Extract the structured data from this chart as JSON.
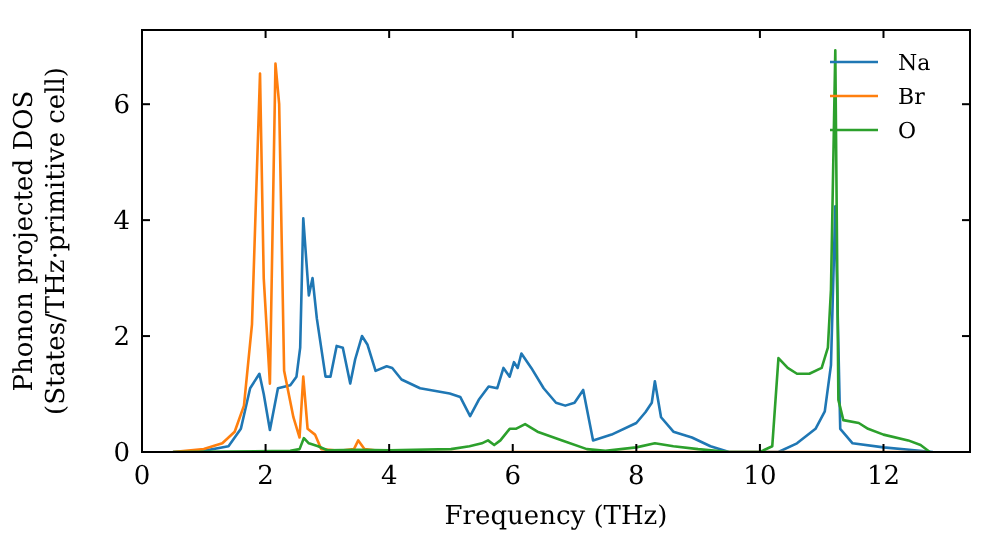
{
  "chart_data": {
    "type": "line",
    "xlabel": "Frequency (THz)",
    "ylabel": "Phonon projected DOS\n(States/THz·primitive cell)",
    "xlim": [
      0,
      13.4
    ],
    "ylim": [
      0,
      7.28
    ],
    "xticks": [
      0,
      2,
      4,
      6,
      8,
      10,
      12
    ],
    "yticks": [
      0,
      2,
      4,
      6
    ],
    "grid": false,
    "legend": "top right",
    "marker": "none",
    "line_style": "solid",
    "series": [
      {
        "name": "Na",
        "color": "#1f77b4",
        "x": [
          0.5,
          1.0,
          1.4,
          1.6,
          1.75,
          1.9,
          1.97,
          2.07,
          2.2,
          2.4,
          2.5,
          2.56,
          2.61,
          2.7,
          2.76,
          2.83,
          2.97,
          3.05,
          3.15,
          3.25,
          3.37,
          3.45,
          3.56,
          3.65,
          3.78,
          3.96,
          4.05,
          4.2,
          4.5,
          4.98,
          5.15,
          5.31,
          5.45,
          5.61,
          5.75,
          5.85,
          5.95,
          6.02,
          6.08,
          6.14,
          6.3,
          6.5,
          6.7,
          6.85,
          7.0,
          7.14,
          7.3,
          7.6,
          8.0,
          8.15,
          8.25,
          8.3,
          8.4,
          8.6,
          8.9,
          9.2,
          9.5,
          10.3,
          10.6,
          10.9,
          11.05,
          11.15,
          11.22,
          11.3,
          11.5,
          12.0,
          12.5,
          12.8
        ],
        "values": [
          0,
          0.02,
          0.1,
          0.4,
          1.1,
          1.35,
          1.0,
          0.38,
          1.1,
          1.15,
          1.3,
          1.8,
          4.03,
          2.7,
          3.0,
          2.3,
          1.3,
          1.3,
          1.83,
          1.8,
          1.18,
          1.6,
          2.0,
          1.85,
          1.4,
          1.48,
          1.45,
          1.25,
          1.1,
          1.01,
          0.95,
          0.62,
          0.9,
          1.13,
          1.1,
          1.45,
          1.3,
          1.55,
          1.45,
          1.7,
          1.45,
          1.1,
          0.85,
          0.8,
          0.85,
          1.07,
          0.2,
          0.3,
          0.5,
          0.69,
          0.85,
          1.22,
          0.6,
          0.35,
          0.25,
          0.1,
          0,
          0,
          0.15,
          0.4,
          0.7,
          1.5,
          4.24,
          0.4,
          0.15,
          0.08,
          0.03,
          0
        ]
      },
      {
        "name": "Br",
        "color": "#ff7f0e",
        "x": [
          0.5,
          1.0,
          1.3,
          1.5,
          1.65,
          1.78,
          1.91,
          1.97,
          2.07,
          2.16,
          2.22,
          2.3,
          2.45,
          2.55,
          2.61,
          2.68,
          2.8,
          2.9,
          3.2,
          3.43,
          3.5,
          3.6,
          4.0,
          12.7
        ],
        "values": [
          0,
          0.05,
          0.15,
          0.35,
          0.8,
          2.2,
          6.53,
          3.0,
          1.18,
          6.7,
          6.0,
          1.4,
          0.6,
          0.25,
          1.3,
          0.4,
          0.3,
          0.05,
          0.02,
          0.05,
          0.2,
          0.05,
          0,
          0
        ]
      },
      {
        "name": "O",
        "color": "#2ca02c",
        "x": [
          0.5,
          2.4,
          2.55,
          2.62,
          2.7,
          2.85,
          3.0,
          3.5,
          4.0,
          5.0,
          5.3,
          5.5,
          5.6,
          5.7,
          5.8,
          5.95,
          6.05,
          6.2,
          6.4,
          6.8,
          7.2,
          7.5,
          8.0,
          8.3,
          8.6,
          9.0,
          9.5,
          10.0,
          10.2,
          10.3,
          10.45,
          10.6,
          10.8,
          11.0,
          11.1,
          11.15,
          11.22,
          11.27,
          11.35,
          11.6,
          11.75,
          12.0,
          12.4,
          12.6,
          12.75
        ],
        "values": [
          0,
          0.02,
          0.05,
          0.24,
          0.15,
          0.1,
          0.03,
          0.04,
          0.03,
          0.05,
          0.1,
          0.15,
          0.2,
          0.12,
          0.2,
          0.4,
          0.4,
          0.48,
          0.35,
          0.2,
          0.05,
          0.02,
          0.08,
          0.15,
          0.1,
          0.05,
          0,
          0,
          0.1,
          1.62,
          1.45,
          1.35,
          1.35,
          1.45,
          1.8,
          2.8,
          6.93,
          0.9,
          0.55,
          0.5,
          0.4,
          0.3,
          0.2,
          0.12,
          0
        ]
      }
    ]
  }
}
